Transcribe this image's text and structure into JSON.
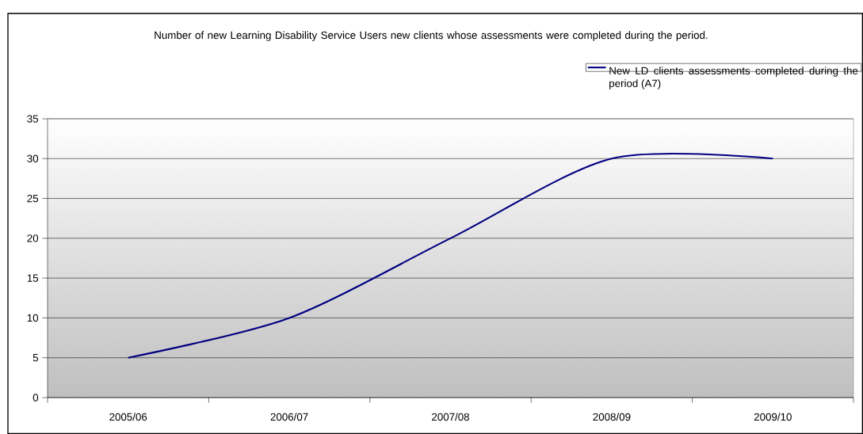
{
  "chart_data": {
    "type": "line",
    "title": "Number of new Learning Disability Service Users new clients whose assessments were completed during the period.",
    "categories": [
      "2005/06",
      "2006/07",
      "2007/08",
      "2008/09",
      "2009/10"
    ],
    "series": [
      {
        "name": "New LD clients assessments completed during the period (A7)",
        "color": "#000080",
        "values": [
          5,
          10,
          20,
          30,
          30
        ]
      }
    ],
    "ylim": [
      0,
      35
    ],
    "yticks": [
      0,
      5,
      10,
      15,
      20,
      25,
      30,
      35
    ],
    "grid": "y",
    "legend": "top right"
  }
}
